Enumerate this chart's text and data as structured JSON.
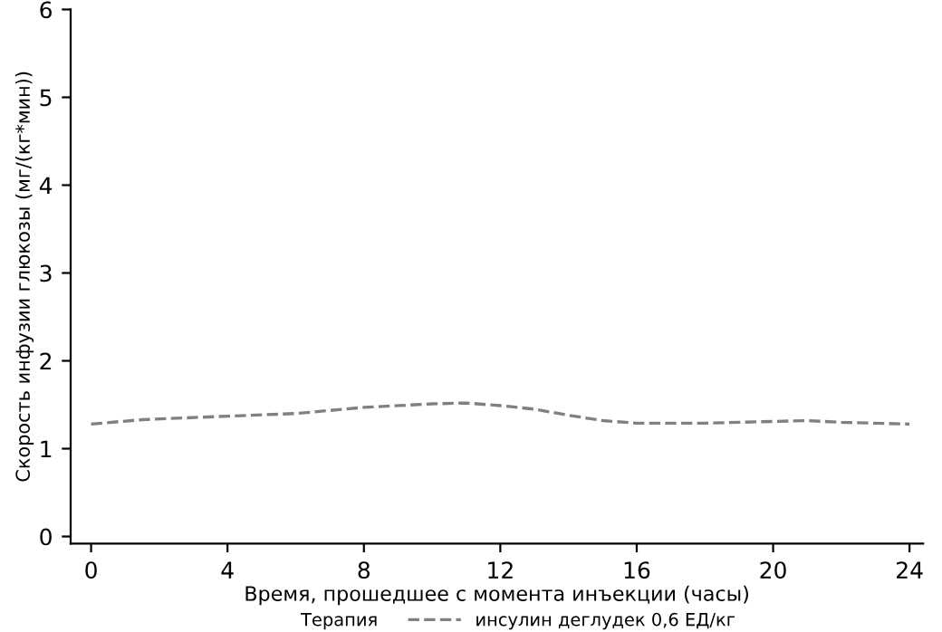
{
  "chart_data": {
    "type": "line",
    "xlabel": "Время, прошедшее с момента инъекции (часы)",
    "ylabel": "Скорость инфузии глюкозы (мг/(кг*мин))",
    "legend_title": "Терапия",
    "legend": "bottom",
    "grid": false,
    "marker": "none",
    "line_style": "dashed",
    "xlim": [
      -0.6,
      24.4
    ],
    "ylim": [
      -0.08,
      6
    ],
    "xticks": [
      0,
      4,
      8,
      12,
      16,
      20,
      24
    ],
    "yticks": [
      0,
      1,
      2,
      3,
      4,
      5,
      6
    ],
    "series": [
      {
        "name": "инсулин деглудек 0,6 ЕД/кг",
        "color": "#808080",
        "x": [
          0,
          1.5,
          4,
          6,
          8,
          10,
          11,
          12,
          13,
          14,
          15,
          16,
          18,
          20,
          21,
          22,
          24
        ],
        "values": [
          1.28,
          1.33,
          1.37,
          1.4,
          1.47,
          1.51,
          1.52,
          1.49,
          1.45,
          1.38,
          1.32,
          1.29,
          1.29,
          1.31,
          1.32,
          1.3,
          1.28
        ]
      }
    ]
  }
}
